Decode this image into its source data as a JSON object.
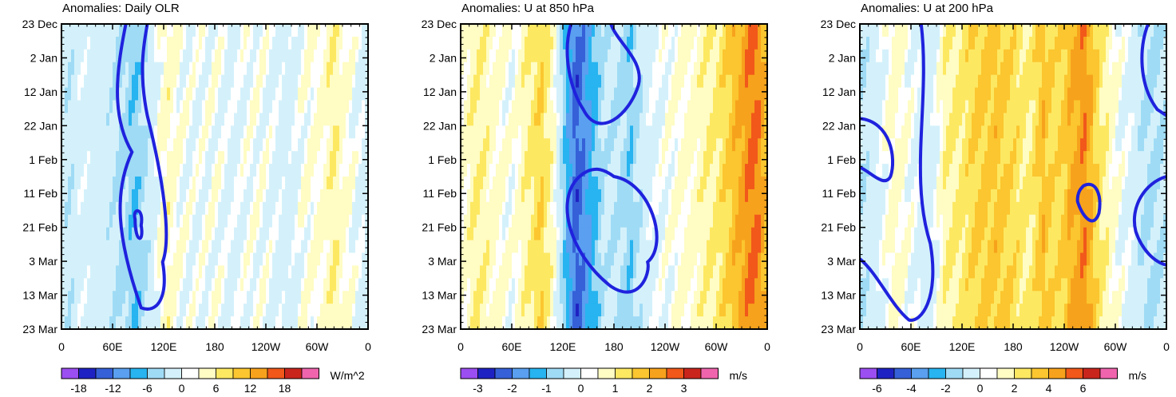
{
  "chart_data": [
    {
      "type": "heatmap",
      "title": "Anomalies: Daily OLR",
      "y_ticks": [
        "23 Dec",
        "2 Jan",
        "12 Jan",
        "22 Jan",
        "1 Feb",
        "11 Feb",
        "21 Feb",
        "3 Mar",
        "13 Mar",
        "23 Mar"
      ],
      "x_ticks": [
        "0",
        "60E",
        "120E",
        "180",
        "120W",
        "60W",
        "0"
      ],
      "xlim": [
        0,
        360
      ],
      "colorbar": {
        "ticks": [
          "-18",
          "-12",
          "-6",
          "0",
          "6",
          "12",
          "18"
        ],
        "units": "W/m^2"
      },
      "contour_line": "dark blue closed contour, roughly 65E-120E",
      "lon_profile": [
        {
          "lon": 0,
          "v": -2
        },
        {
          "lon": 10,
          "v": -4
        },
        {
          "lon": 22,
          "v": -1
        },
        {
          "lon": 40,
          "v": -2
        },
        {
          "lon": 55,
          "v": -3
        },
        {
          "lon": 70,
          "v": -5
        },
        {
          "lon": 88,
          "v": -7
        },
        {
          "lon": 100,
          "v": -4
        },
        {
          "lon": 115,
          "v": 1
        },
        {
          "lon": 125,
          "v": 3
        },
        {
          "lon": 140,
          "v": 1
        },
        {
          "lon": 160,
          "v": 0
        },
        {
          "lon": 180,
          "v": 1
        },
        {
          "lon": 200,
          "v": -1
        },
        {
          "lon": 225,
          "v": 1
        },
        {
          "lon": 245,
          "v": 0
        },
        {
          "lon": 265,
          "v": -2
        },
        {
          "lon": 285,
          "v": 1
        },
        {
          "lon": 305,
          "v": 2
        },
        {
          "lon": 320,
          "v": 4
        },
        {
          "lon": 340,
          "v": 1
        },
        {
          "lon": 360,
          "v": -2
        }
      ]
    },
    {
      "type": "heatmap",
      "title": "Anomalies: U at 850 hPa",
      "y_ticks": [
        "23 Dec",
        "2 Jan",
        "12 Jan",
        "22 Jan",
        "1 Feb",
        "11 Feb",
        "21 Feb",
        "3 Mar",
        "13 Mar",
        "23 Mar"
      ],
      "x_ticks": [
        "0",
        "60E",
        "120E",
        "180",
        "120W",
        "60W",
        "0"
      ],
      "xlim": [
        0,
        360
      ],
      "colorbar": {
        "ticks": [
          "-3",
          "-2",
          "-1",
          "0",
          "1",
          "2",
          "3"
        ],
        "units": "m/s"
      },
      "contour_line": "dark blue contours near 130E-210E",
      "lon_profile": [
        {
          "lon": 0,
          "v": 0.3
        },
        {
          "lon": 20,
          "v": 0.7
        },
        {
          "lon": 40,
          "v": 0.4
        },
        {
          "lon": 60,
          "v": 0.1
        },
        {
          "lon": 80,
          "v": 0.8
        },
        {
          "lon": 95,
          "v": 1.2
        },
        {
          "lon": 110,
          "v": 0.3
        },
        {
          "lon": 125,
          "v": -1.5
        },
        {
          "lon": 135,
          "v": -2.6
        },
        {
          "lon": 150,
          "v": -1.8
        },
        {
          "lon": 170,
          "v": -0.6
        },
        {
          "lon": 185,
          "v": -0.8
        },
        {
          "lon": 200,
          "v": -1.1
        },
        {
          "lon": 220,
          "v": -0.2
        },
        {
          "lon": 250,
          "v": 0.2
        },
        {
          "lon": 280,
          "v": 0.5
        },
        {
          "lon": 300,
          "v": 0.8
        },
        {
          "lon": 315,
          "v": 1.3
        },
        {
          "lon": 330,
          "v": 1.9
        },
        {
          "lon": 345,
          "v": 2.4
        },
        {
          "lon": 360,
          "v": 1.5
        }
      ]
    },
    {
      "type": "heatmap",
      "title": "Anomalies: U at 200 hPa",
      "y_ticks": [
        "23 Dec",
        "2 Jan",
        "12 Jan",
        "22 Jan",
        "1 Feb",
        "11 Feb",
        "21 Feb",
        "3 Mar",
        "13 Mar",
        "23 Mar"
      ],
      "x_ticks": [
        "0",
        "60E",
        "120E",
        "180",
        "120W",
        "60W",
        "0"
      ],
      "xlim": [
        0,
        360
      ],
      "colorbar": {
        "ticks": [
          "-6",
          "-4",
          "-2",
          "0",
          "2",
          "4",
          "6"
        ],
        "units": "m/s"
      },
      "contour_line": "dark blue contours near 0-80E, 260E and 330E-360",
      "lon_profile": [
        {
          "lon": 0,
          "v": -1.5
        },
        {
          "lon": 20,
          "v": -0.5
        },
        {
          "lon": 40,
          "v": 1.0
        },
        {
          "lon": 60,
          "v": 0.2
        },
        {
          "lon": 80,
          "v": -1.0
        },
        {
          "lon": 100,
          "v": 1.2
        },
        {
          "lon": 120,
          "v": 1.8
        },
        {
          "lon": 140,
          "v": 2.6
        },
        {
          "lon": 160,
          "v": 3.0
        },
        {
          "lon": 180,
          "v": 2.2
        },
        {
          "lon": 200,
          "v": 1.5
        },
        {
          "lon": 215,
          "v": 3.2
        },
        {
          "lon": 230,
          "v": 2.0
        },
        {
          "lon": 250,
          "v": 3.6
        },
        {
          "lon": 265,
          "v": 4.3
        },
        {
          "lon": 280,
          "v": 2.0
        },
        {
          "lon": 300,
          "v": 0.5
        },
        {
          "lon": 320,
          "v": -0.5
        },
        {
          "lon": 340,
          "v": -1.8
        },
        {
          "lon": 360,
          "v": -1.2
        }
      ]
    }
  ],
  "colors": {
    "levels": [
      "#9b4ef2",
      "#1f22c2",
      "#3560d8",
      "#5a9ff0",
      "#27b4f0",
      "#9fdbf5",
      "#d4f1fb",
      "#ffffff",
      "#fffcc4",
      "#fde862",
      "#fbc62f",
      "#f7a21c",
      "#f1581a",
      "#c9251d",
      "#f064ad"
    ],
    "contour": "#1f22dd"
  }
}
